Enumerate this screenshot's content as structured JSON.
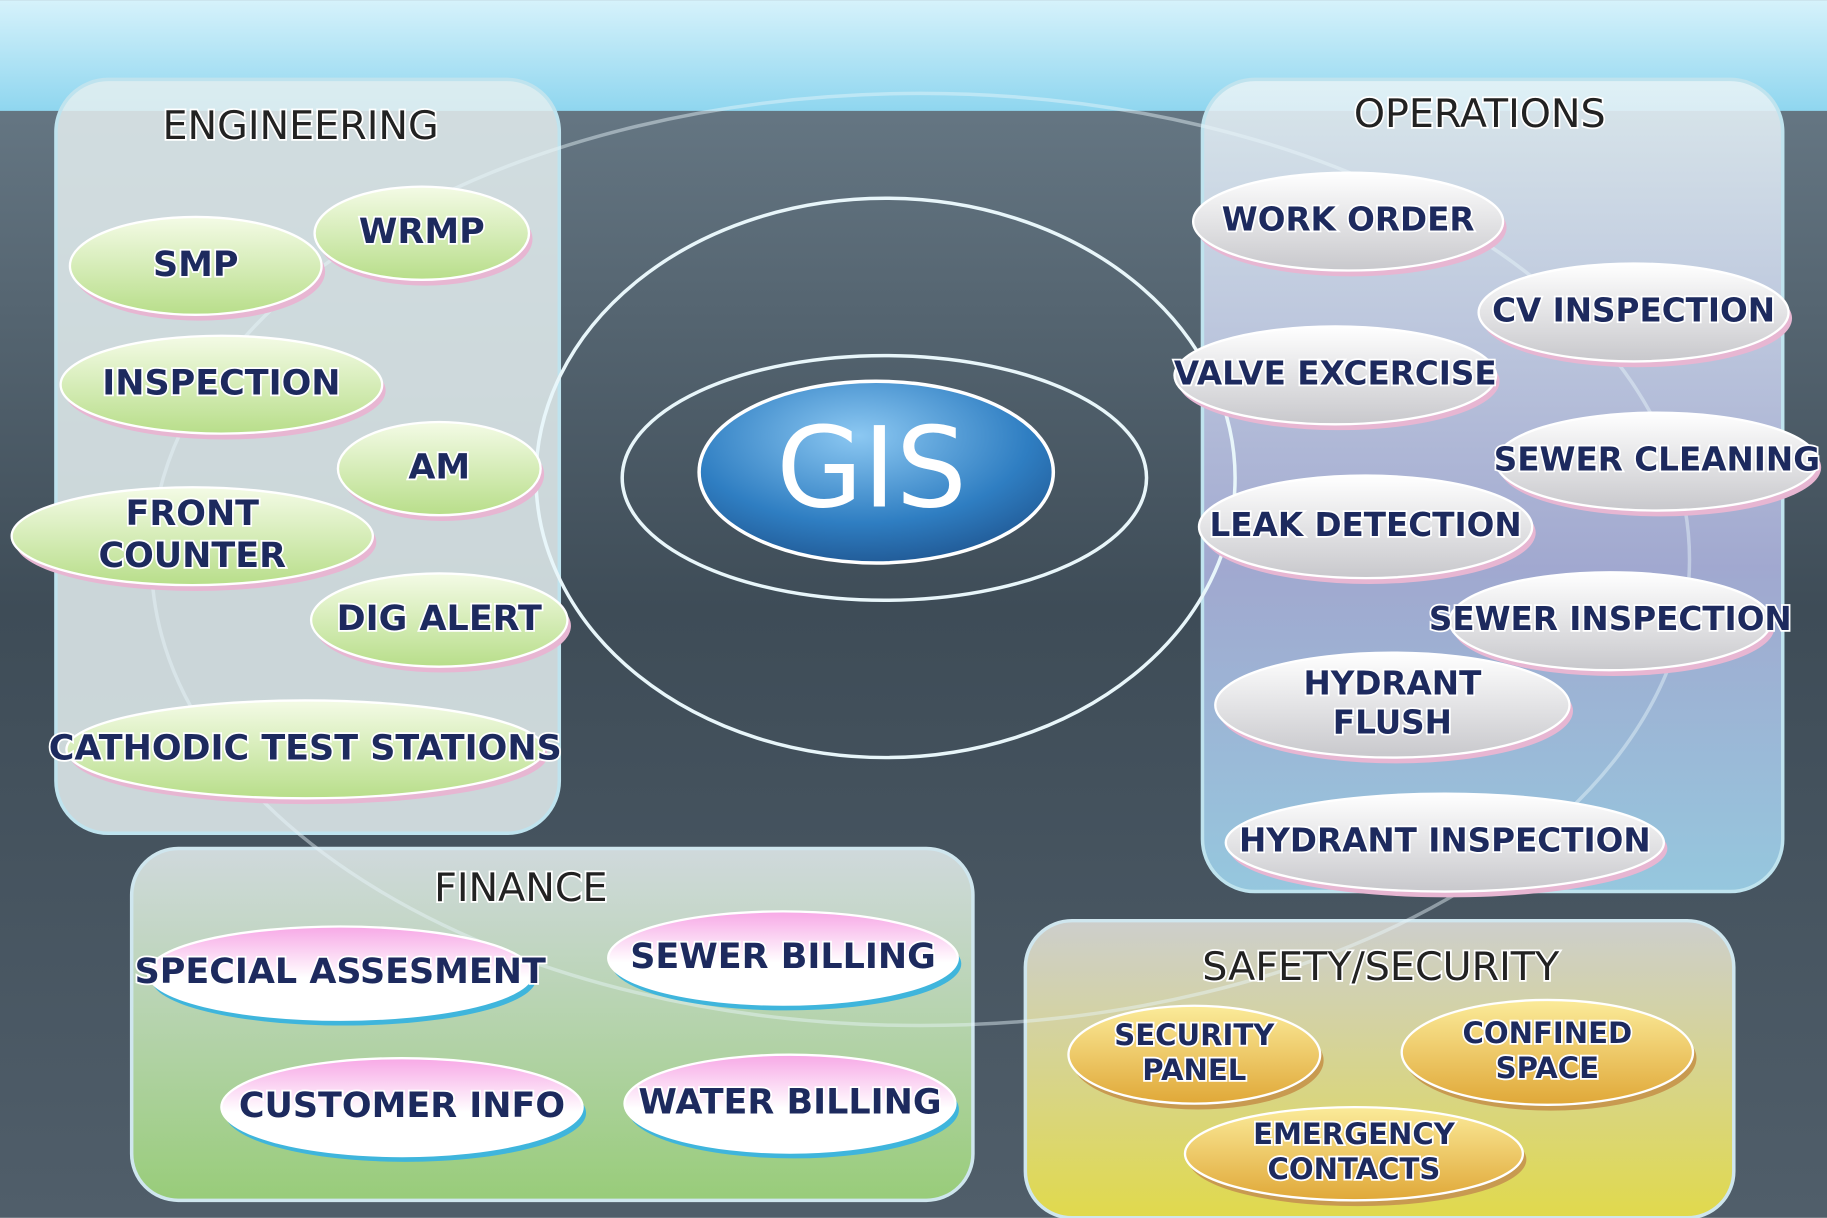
{
  "center": "GIS",
  "groups": [
    {
      "title": "ENGINEERING",
      "items": [
        {
          "lines": [
            "SMP"
          ]
        },
        {
          "lines": [
            "WRMP"
          ]
        },
        {
          "lines": [
            "INSPECTION"
          ]
        },
        {
          "lines": [
            "AM"
          ]
        },
        {
          "lines": [
            "FRONT",
            "COUNTER"
          ]
        },
        {
          "lines": [
            "DIG ALERT"
          ]
        },
        {
          "lines": [
            "CATHODIC TEST STATIONS"
          ]
        }
      ]
    },
    {
      "title": "OPERATIONS",
      "items": [
        {
          "lines": [
            "WORK ORDER"
          ]
        },
        {
          "lines": [
            "CV INSPECTION"
          ]
        },
        {
          "lines": [
            "VALVE EXCERCISE"
          ]
        },
        {
          "lines": [
            "SEWER CLEANING"
          ]
        },
        {
          "lines": [
            "LEAK DETECTION"
          ]
        },
        {
          "lines": [
            "SEWER INSPECTION"
          ]
        },
        {
          "lines": [
            "HYDRANT",
            "FLUSH"
          ]
        },
        {
          "lines": [
            "HYDRANT INSPECTION"
          ]
        }
      ]
    },
    {
      "title": "FINANCE",
      "items": [
        {
          "lines": [
            "SPECIAL ASSESMENT"
          ]
        },
        {
          "lines": [
            "SEWER BILLING"
          ]
        },
        {
          "lines": [
            "CUSTOMER INFO"
          ]
        },
        {
          "lines": [
            "WATER BILLING"
          ]
        }
      ]
    },
    {
      "title": "SAFETY/SECURITY",
      "items": [
        {
          "lines": [
            "SECURITY",
            "PANEL"
          ]
        },
        {
          "lines": [
            "CONFINED",
            "SPACE"
          ]
        },
        {
          "lines": [
            "EMERGENCY",
            "CONTACTS"
          ]
        }
      ]
    }
  ]
}
